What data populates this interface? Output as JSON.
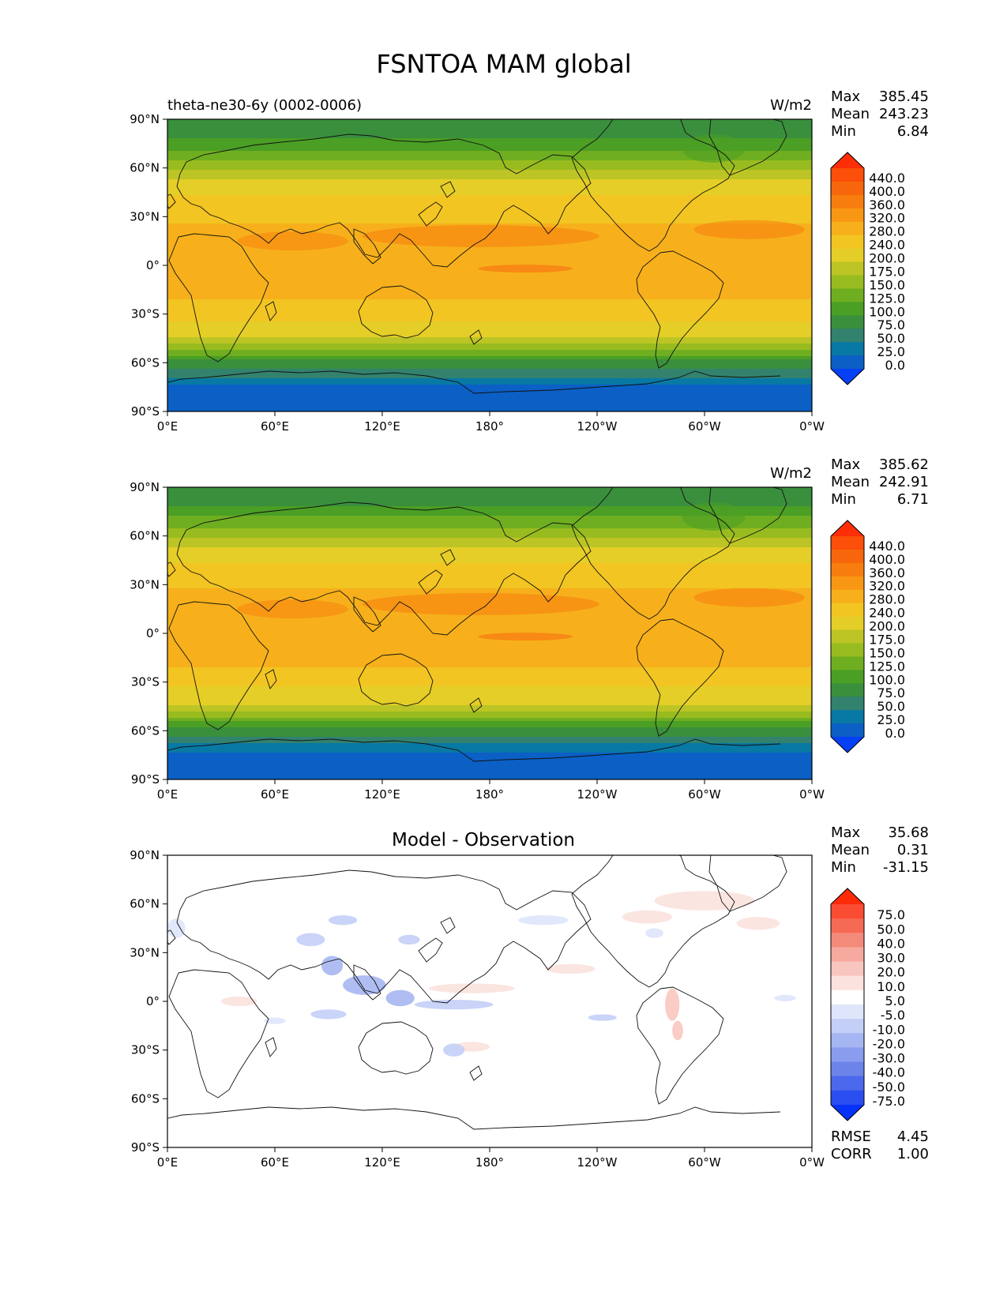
{
  "title": "FSNTOA MAM global",
  "stat_labels": {
    "max": "Max",
    "mean": "Mean",
    "min": "Min",
    "rmse": "RMSE",
    "corr": "CORR"
  },
  "chart_data": [
    {
      "type": "heatmap",
      "title": "theta-ne30-6y (0002-0006)",
      "units": "W/m2",
      "stats": {
        "max": "385.45",
        "mean": "243.23",
        "min": "6.84"
      },
      "x_ticks": [
        "0°E",
        "60°E",
        "120°E",
        "180°",
        "120°W",
        "60°W",
        "0°W"
      ],
      "y_ticks": [
        "90°N",
        "60°N",
        "30°N",
        "0°",
        "30°S",
        "60°S",
        "90°S"
      ],
      "xlim": [
        0,
        360
      ],
      "ylim": [
        -90,
        90
      ],
      "colorbar": {
        "extend": "both",
        "levels": [
          "440.0",
          "400.0",
          "360.0",
          "320.0",
          "280.0",
          "240.0",
          "200.0",
          "175.0",
          "150.0",
          "125.0",
          "100.0",
          "75.0",
          "50.0",
          "25.0",
          "0.0"
        ],
        "colors": [
          "#fd2e08",
          "#fb4f0a",
          "#f7660c",
          "#f77e0e",
          "#f99614",
          "#f7b01b",
          "#f2c522",
          "#e5ce27",
          "#bcc525",
          "#98bc1f",
          "#6fae20",
          "#4a9f24",
          "#3a8f3d",
          "#32826e",
          "#0879a4",
          "#0b5fc5",
          "#0640f6"
        ]
      },
      "zonal_profile": {
        "lat": [
          90,
          85,
          78,
          70,
          62,
          55,
          48,
          40,
          30,
          20,
          10,
          0,
          -10,
          -20,
          -30,
          -40,
          -48,
          -55,
          -60,
          -66,
          -70,
          -76,
          -90
        ],
        "values": [
          80,
          82,
          100,
          130,
          160,
          190,
          225,
          250,
          268,
          300,
          298,
          284,
          292,
          285,
          250,
          222,
          180,
          125,
          92,
          70,
          40,
          10,
          8
        ]
      }
    },
    {
      "type": "heatmap",
      "title": "",
      "units": "W/m2",
      "stats": {
        "max": "385.62",
        "mean": "242.91",
        "min": "6.71"
      },
      "x_ticks": [
        "0°E",
        "60°E",
        "120°E",
        "180°",
        "120°W",
        "60°W",
        "0°W"
      ],
      "y_ticks": [
        "90°N",
        "60°N",
        "30°N",
        "0°",
        "30°S",
        "60°S",
        "90°S"
      ],
      "xlim": [
        0,
        360
      ],
      "ylim": [
        -90,
        90
      ],
      "colorbar": {
        "extend": "both",
        "levels": [
          "440.0",
          "400.0",
          "360.0",
          "320.0",
          "280.0",
          "240.0",
          "200.0",
          "175.0",
          "150.0",
          "125.0",
          "100.0",
          "75.0",
          "50.0",
          "25.0",
          "0.0"
        ],
        "colors": [
          "#fd2e08",
          "#fb4f0a",
          "#f7660c",
          "#f77e0e",
          "#f99614",
          "#f7b01b",
          "#f2c522",
          "#e5ce27",
          "#bcc525",
          "#98bc1f",
          "#6fae20",
          "#4a9f24",
          "#3a8f3d",
          "#32826e",
          "#0879a4",
          "#0b5fc5",
          "#0640f6"
        ]
      },
      "zonal_profile": {
        "lat": [
          90,
          85,
          78,
          70,
          62,
          55,
          48,
          40,
          30,
          20,
          10,
          0,
          -10,
          -20,
          -30,
          -40,
          -48,
          -55,
          -60,
          -66,
          -70,
          -76,
          -90
        ],
        "values": [
          80,
          84,
          102,
          132,
          162,
          192,
          226,
          252,
          270,
          302,
          300,
          286,
          290,
          283,
          248,
          220,
          178,
          123,
          90,
          68,
          38,
          10,
          8
        ]
      }
    },
    {
      "type": "heatmap",
      "title": "Model - Observation",
      "units": "",
      "stats": {
        "max": "35.68",
        "mean": "0.31",
        "min": "-31.15"
      },
      "rmse": "4.45",
      "corr": "1.00",
      "x_ticks": [
        "0°E",
        "60°E",
        "120°E",
        "180°",
        "120°W",
        "60°W",
        "0°W"
      ],
      "y_ticks": [
        "90°N",
        "60°N",
        "30°N",
        "0°",
        "30°S",
        "60°S",
        "90°S"
      ],
      "xlim": [
        0,
        360
      ],
      "ylim": [
        -90,
        90
      ],
      "colorbar": {
        "extend": "both",
        "levels": [
          "75.0",
          "50.0",
          "40.0",
          "30.0",
          "20.0",
          "10.0",
          "5.0",
          "-5.0",
          "-10.0",
          "-20.0",
          "-30.0",
          "-40.0",
          "-50.0",
          "-75.0"
        ],
        "colors": [
          "#fe2a08",
          "#fa4c32",
          "#f56a54",
          "#f48a7a",
          "#f6a99e",
          "#f8c6bf",
          "#fbe2de",
          "#ffffff",
          "#dfe5fb",
          "#c4cff7",
          "#a6b6f2",
          "#899cee",
          "#6c84ea",
          "#4c68ec",
          "#2a4ef0",
          "#0631f9"
        ]
      },
      "anomalies": [
        {
          "lon": 300,
          "lat": 62,
          "value": 10,
          "rx": 28,
          "ry": 6
        },
        {
          "lon": 268,
          "lat": 52,
          "value": 10,
          "rx": 14,
          "ry": 4
        },
        {
          "lon": 330,
          "lat": 48,
          "value": 10,
          "rx": 12,
          "ry": 4
        },
        {
          "lon": 282,
          "lat": -2,
          "value": 20,
          "rx": 4,
          "ry": 10
        },
        {
          "lon": 285,
          "lat": -18,
          "value": 20,
          "rx": 3,
          "ry": 6
        },
        {
          "lon": 170,
          "lat": 8,
          "value": 10,
          "rx": 24,
          "ry": 3
        },
        {
          "lon": 225,
          "lat": 20,
          "value": 10,
          "rx": 14,
          "ry": 3
        },
        {
          "lon": 40,
          "lat": 0,
          "value": 10,
          "rx": 10,
          "ry": 3
        },
        {
          "lon": 170,
          "lat": -28,
          "value": 10,
          "rx": 10,
          "ry": 3
        },
        {
          "lon": 30,
          "lat": 50,
          "value": 5,
          "rx": 14,
          "ry": 3
        },
        {
          "lon": 318,
          "lat": 0,
          "value": 5,
          "rx": 8,
          "ry": 3
        },
        {
          "lon": 310,
          "lat": -28,
          "value": 5,
          "rx": 12,
          "ry": 3
        },
        {
          "lon": 110,
          "lat": 10,
          "value": -20,
          "rx": 12,
          "ry": 6
        },
        {
          "lon": 130,
          "lat": 2,
          "value": -20,
          "rx": 8,
          "ry": 5
        },
        {
          "lon": 92,
          "lat": 22,
          "value": -20,
          "rx": 6,
          "ry": 6
        },
        {
          "lon": 90,
          "lat": -8,
          "value": -10,
          "rx": 10,
          "ry": 3
        },
        {
          "lon": 160,
          "lat": -2,
          "value": -10,
          "rx": 22,
          "ry": 3
        },
        {
          "lon": 160,
          "lat": -30,
          "value": -10,
          "rx": 6,
          "ry": 4
        },
        {
          "lon": 80,
          "lat": 38,
          "value": -10,
          "rx": 8,
          "ry": 4
        },
        {
          "lon": 98,
          "lat": 50,
          "value": -10,
          "rx": 8,
          "ry": 3
        },
        {
          "lon": 135,
          "lat": 38,
          "value": -10,
          "rx": 6,
          "ry": 3
        },
        {
          "lon": 210,
          "lat": 50,
          "value": -5,
          "rx": 14,
          "ry": 3
        },
        {
          "lon": 243,
          "lat": -10,
          "value": -10,
          "rx": 8,
          "ry": 2
        },
        {
          "lon": 5,
          "lat": 45,
          "value": -5,
          "rx": 5,
          "ry": 6
        },
        {
          "lon": 345,
          "lat": 2,
          "value": -5,
          "rx": 6,
          "ry": 2
        },
        {
          "lon": 60,
          "lat": -12,
          "value": -5,
          "rx": 6,
          "ry": 2
        },
        {
          "lon": 272,
          "lat": 42,
          "value": -5,
          "rx": 5,
          "ry": 3
        }
      ]
    }
  ]
}
